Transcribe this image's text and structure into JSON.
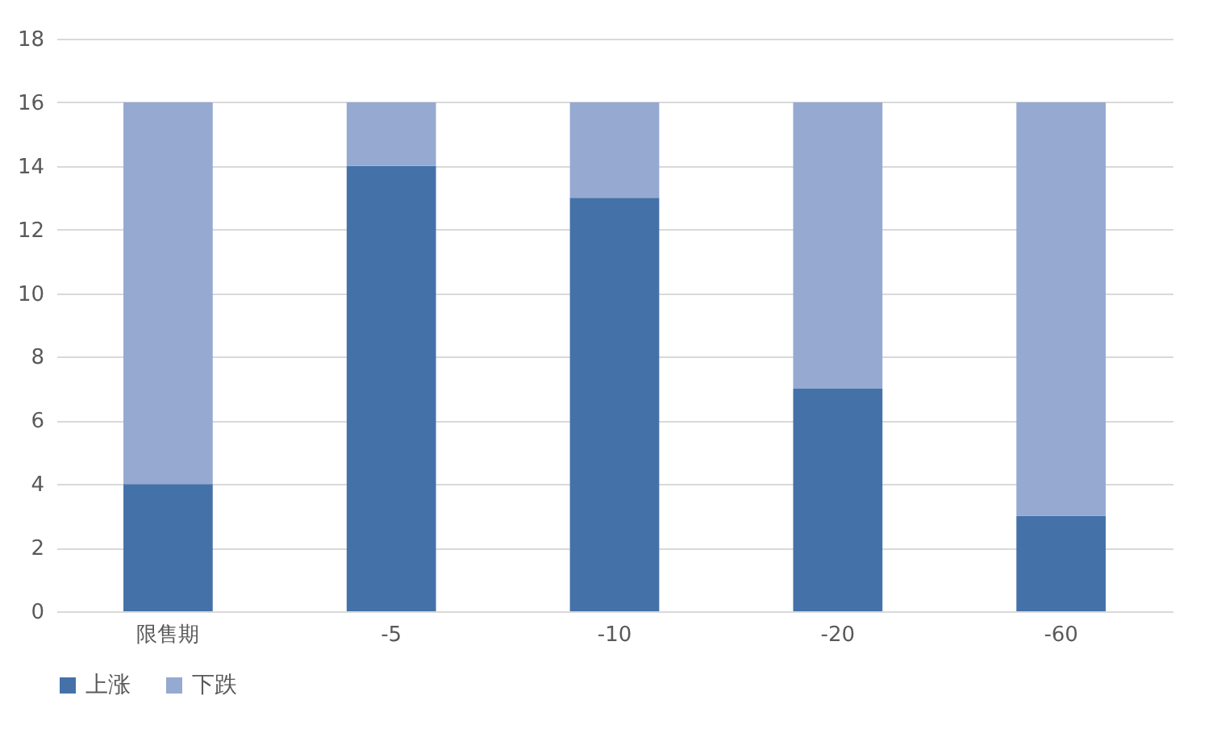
{
  "chart_data": {
    "type": "bar",
    "stacked": true,
    "categories": [
      "限售期",
      "-5",
      "-10",
      "-20",
      "-60"
    ],
    "series": [
      {
        "name": "上涨",
        "color": "#4472a8",
        "values": [
          4,
          14,
          13,
          7,
          3
        ]
      },
      {
        "name": "下跌",
        "color": "#95a9d1",
        "values": [
          12,
          2,
          3,
          9,
          13
        ]
      }
    ],
    "ylim": [
      0,
      18
    ],
    "yticks": [
      0,
      2,
      4,
      6,
      8,
      10,
      12,
      14,
      16,
      18
    ],
    "grid": "y",
    "legend": "bottom"
  }
}
